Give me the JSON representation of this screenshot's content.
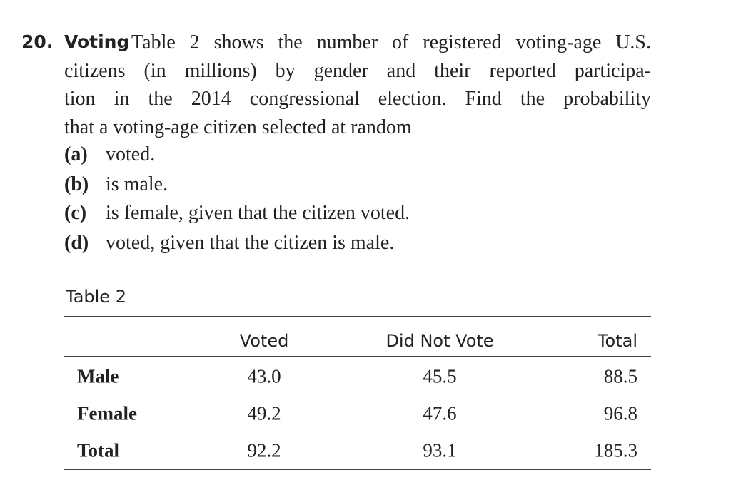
{
  "problem": {
    "number": "20.",
    "keyword": "Voting",
    "lines": [
      "Table 2 shows the number of registered voting-age U.S.",
      "citizens (in millions) by gender and their reported participa-",
      "tion in the 2014 congressional election. Find the probability",
      "that a voting-age citizen selected at random"
    ],
    "parts": [
      {
        "label": "(a)",
        "text": "voted."
      },
      {
        "label": "(b)",
        "text": "is male."
      },
      {
        "label": "(c)",
        "text": "is female, given that the citizen voted."
      },
      {
        "label": "(d)",
        "text": "voted, given that the citizen is male."
      }
    ]
  },
  "table": {
    "title": "Table 2",
    "header": [
      "Voted",
      "Did Not Vote",
      "Total"
    ],
    "rows": [
      [
        "Male",
        "43.0",
        "45.5",
        "88.5"
      ],
      [
        "Female",
        "49.2",
        "47.6",
        "96.8"
      ],
      [
        "Total",
        "92.2",
        "93.1",
        "185.3"
      ]
    ]
  }
}
